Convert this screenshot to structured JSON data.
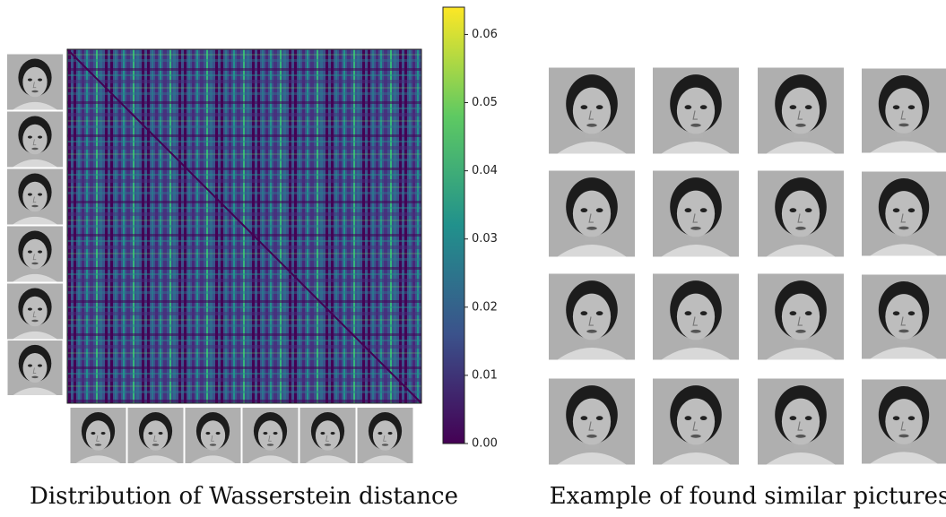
{
  "chart_data": {
    "type": "heatmap",
    "colorbar": {
      "lim": [
        0,
        0.064
      ],
      "ticks": [
        {
          "value": 0,
          "label": "0.00"
        },
        {
          "value": 0.01,
          "label": "0.01"
        },
        {
          "value": 0.02,
          "label": "0.02"
        },
        {
          "value": 0.03,
          "label": "0.03"
        },
        {
          "value": 0.04,
          "label": "0.04"
        },
        {
          "value": 0.05,
          "label": "0.05"
        },
        {
          "value": 0.06,
          "label": "0.06"
        }
      ],
      "colors": [
        "#440154",
        "#3b528b",
        "#21918c",
        "#5ec962",
        "#fde725"
      ]
    }
  },
  "captions": [
    "Distribution of Wasserstein distance",
    "Example of found similar pictures"
  ]
}
